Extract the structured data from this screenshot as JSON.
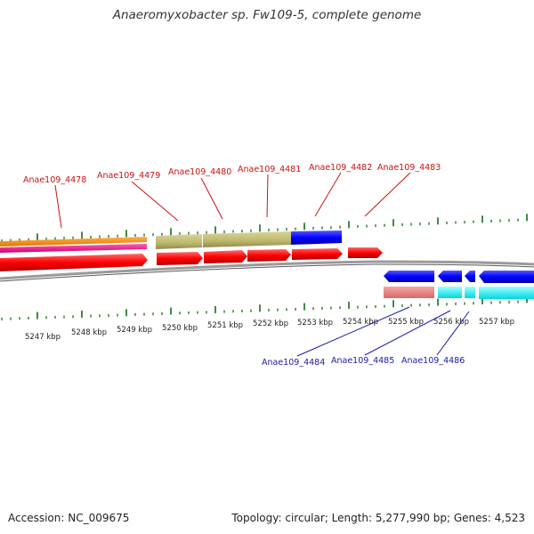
{
  "title": "Anaeromyxobacter sp. Fw109-5, complete genome",
  "footer": {
    "accession": "Accession: NC_009675",
    "summary": "Topology: circular; Length: 5,277,990 bp; Genes: 4,523"
  },
  "axis": {
    "tick_labels": [
      "5247 kbp",
      "5248 kbp",
      "5249 kbp",
      "5250 kbp",
      "5251 kbp",
      "5252 kbp",
      "5253 kbp",
      "5254 kbp",
      "5255 kbp",
      "5256 kbp",
      "5257 kbp"
    ]
  },
  "genes": {
    "forward_labels": [
      "Anae109_4478",
      "Anae109_4479",
      "Anae109_4480",
      "Anae109_4481",
      "Anae109_4482",
      "Anae109_4483"
    ],
    "reverse_labels": [
      "Anae109_4484",
      "Anae109_4485",
      "Anae109_4486"
    ]
  },
  "colors": {
    "forward_cds": "#ff0000",
    "reverse_cds": "#0000ff",
    "olive_feature": "#bdb76b",
    "orange_feature": "#ff8c00",
    "pink_feature": "#ff1493",
    "salmon_feature": "#f08080",
    "cyan_feature": "#00ffff",
    "backbone": "#808080",
    "ticks": "#006400"
  }
}
